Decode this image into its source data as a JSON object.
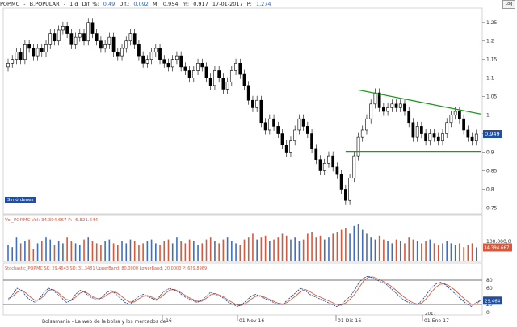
{
  "header": {
    "symbol": "POP.MC",
    "name": "B.POPULAR",
    "period": "1 d",
    "dif_pct_label": "Dif. %:",
    "dif_pct": "0,49",
    "dif_label": "Dif.:",
    "dif": "0,092",
    "m_label": "M:",
    "m": "0,954",
    "m2_label": "m:",
    "m2": "0,917",
    "date": "17-01-2017",
    "p_label": "P:",
    "p": "1,274",
    "log_button": "Log"
  },
  "price_panel": {
    "yticks": [
      "1,25",
      "1,2",
      "1,15",
      "1,1",
      "1,05",
      "1",
      "0,95",
      "0,9",
      "0,85",
      "0,8",
      "0,75"
    ],
    "last_price_label": "0,949",
    "badge": "Sin órdenes",
    "colors": {
      "up": "#ffffff",
      "down": "#000000",
      "trendline": "#1c9a1c",
      "price_tag": "#1f4ea3"
    }
  },
  "volume_panel": {
    "legend": "Vol_POP.MC Vol: 34.394.667  P: -6.821.644",
    "ytick": "100.000,0",
    "last_label": "34.394.667",
    "colors": {
      "up": "#3d6fc7",
      "down": "#d9573b"
    }
  },
  "stoch_panel": {
    "legend": "Stochastic_POP.MC  SK: 29,4643  SD: 31,3481  UpperBand: 80,0000  LowerBand: 20,0000  P: 629,8969",
    "yticks": [
      "80",
      "60",
      "20",
      "0"
    ],
    "last_label": "29,464",
    "colors": {
      "sk": "#1f4ea3",
      "sd": "#d9573b"
    }
  },
  "x_axis": {
    "labels": [
      "-16",
      "01-Nov-16",
      "01-Dic-16",
      "01-Ene-17"
    ],
    "year_marker": "2017"
  },
  "footer": {
    "source": "Bolsamania - La web de la bolsa y los mercados de"
  },
  "chart_data": {
    "type": "candlestick",
    "ylim": [
      0.74,
      1.28
    ],
    "close": [
      1.14,
      1.15,
      1.17,
      1.15,
      1.19,
      1.18,
      1.16,
      1.18,
      1.17,
      1.19,
      1.22,
      1.2,
      1.23,
      1.24,
      1.22,
      1.19,
      1.21,
      1.22,
      1.2,
      1.25,
      1.22,
      1.2,
      1.18,
      1.19,
      1.21,
      1.17,
      1.16,
      1.18,
      1.2,
      1.22,
      1.19,
      1.16,
      1.14,
      1.15,
      1.17,
      1.18,
      1.15,
      1.14,
      1.13,
      1.15,
      1.16,
      1.13,
      1.12,
      1.1,
      1.12,
      1.14,
      1.13,
      1.1,
      1.08,
      1.12,
      1.1,
      1.07,
      1.09,
      1.12,
      1.14,
      1.11,
      1.08,
      1.04,
      1.02,
      1.04,
      0.98,
      0.96,
      0.99,
      0.97,
      0.95,
      0.92,
      0.9,
      0.93,
      0.96,
      0.99,
      0.97,
      0.95,
      0.91,
      0.88,
      0.85,
      0.87,
      0.89,
      0.86,
      0.84,
      0.8,
      0.77,
      0.83,
      0.89,
      0.94,
      0.96,
      0.99,
      1.03,
      1.06,
      1.02,
      1.01,
      1.02,
      1.03,
      1.02,
      1.03,
      1.01,
      0.98,
      0.94,
      0.97,
      0.95,
      0.93,
      0.95,
      0.94,
      0.93,
      0.95,
      0.98,
      1.0,
      1.01,
      0.99,
      0.96,
      0.94,
      0.93,
      0.949
    ],
    "volume": [
      40,
      35,
      60,
      45,
      50,
      55,
      30,
      45,
      50,
      60,
      55,
      40,
      50,
      45,
      60,
      50,
      45,
      40,
      55,
      60,
      50,
      45,
      40,
      50,
      55,
      45,
      40,
      50,
      45,
      55,
      50,
      40,
      45,
      50,
      55,
      45,
      40,
      50,
      55,
      45,
      60,
      50,
      45,
      55,
      50,
      40,
      45,
      55,
      60,
      50,
      45,
      55,
      60,
      50,
      45,
      40,
      55,
      60,
      70,
      55,
      60,
      65,
      50,
      55,
      60,
      70,
      65,
      55,
      60,
      50,
      55,
      70,
      75,
      60,
      65,
      55,
      60,
      70,
      75,
      80,
      85,
      70,
      90,
      95,
      80,
      70,
      60,
      55,
      65,
      55,
      50,
      45,
      55,
      50,
      45,
      60,
      55,
      50,
      45,
      50,
      55,
      45,
      40,
      45,
      50,
      45,
      40,
      45,
      35,
      40,
      45,
      34.39
    ],
    "stochastic": {
      "upper_band": 80,
      "lower_band": 20,
      "sk": [
        30,
        45,
        60,
        55,
        40,
        30,
        25,
        35,
        50,
        60,
        55,
        45,
        35,
        25,
        30,
        45,
        55,
        50,
        40,
        35,
        30,
        40,
        50,
        55,
        45,
        35,
        25,
        20,
        30,
        40,
        45,
        40,
        35,
        30,
        45,
        55,
        60,
        55,
        50,
        40,
        35,
        30,
        25,
        30,
        40,
        50,
        45,
        40,
        35,
        25,
        20,
        15,
        20,
        30,
        40,
        45,
        40,
        35,
        30,
        25,
        20,
        20,
        30,
        40,
        50,
        60,
        55,
        45,
        40,
        35,
        30,
        25,
        20,
        15,
        20,
        30,
        40,
        55,
        75,
        85,
        90,
        85,
        80,
        75,
        70,
        60,
        50,
        40,
        30,
        25,
        20,
        20,
        30,
        45,
        60,
        70,
        75,
        70,
        60,
        50,
        40,
        30,
        20,
        15,
        25,
        29.46
      ],
      "sd": [
        35,
        40,
        50,
        55,
        48,
        38,
        30,
        32,
        42,
        55,
        57,
        50,
        40,
        32,
        30,
        38,
        48,
        52,
        45,
        38,
        34,
        36,
        44,
        50,
        50,
        42,
        33,
        26,
        26,
        34,
        40,
        42,
        38,
        33,
        38,
        48,
        56,
        57,
        52,
        45,
        38,
        33,
        28,
        28,
        35,
        44,
        47,
        43,
        38,
        30,
        24,
        18,
        18,
        24,
        33,
        40,
        42,
        38,
        33,
        28,
        23,
        21,
        25,
        33,
        42,
        52,
        57,
        52,
        45,
        40,
        35,
        30,
        25,
        20,
        18,
        24,
        33,
        45,
        62,
        78,
        87,
        88,
        84,
        79,
        73,
        66,
        57,
        47,
        38,
        30,
        24,
        21,
        24,
        35,
        49,
        62,
        70,
        71,
        66,
        58,
        48,
        38,
        28,
        20,
        20,
        31.35
      ]
    }
  }
}
